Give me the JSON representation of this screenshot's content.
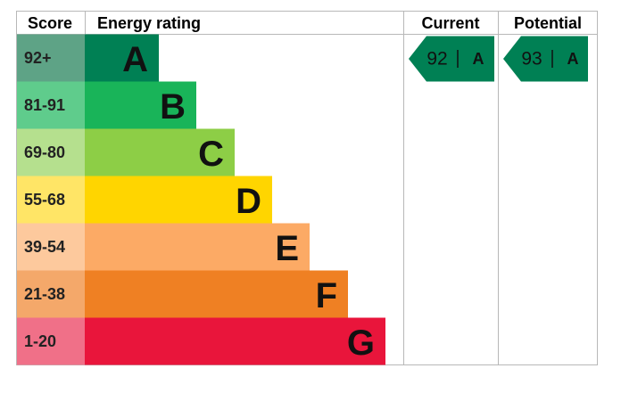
{
  "header": {
    "score": "Score",
    "energy_rating": "Energy rating",
    "current": "Current",
    "potential": "Potential"
  },
  "bands": [
    {
      "score": "92+",
      "letter": "A",
      "color": "#008054",
      "score_color": "#5ea386"
    },
    {
      "score": "81-91",
      "letter": "B",
      "color": "#19b459",
      "score_color": "#5fcc8c"
    },
    {
      "score": "69-80",
      "letter": "C",
      "color": "#8dce46",
      "score_color": "#b5e08e"
    },
    {
      "score": "55-68",
      "letter": "D",
      "color": "#ffd500",
      "score_color": "#ffe566"
    },
    {
      "score": "39-54",
      "letter": "E",
      "color": "#fcaa65",
      "score_color": "#fdc99d"
    },
    {
      "score": "21-38",
      "letter": "F",
      "color": "#ef8023",
      "score_color": "#f4a86a"
    },
    {
      "score": "1-20",
      "letter": "G",
      "color": "#e9153b",
      "score_color": "#f07088"
    }
  ],
  "current": {
    "value": 92,
    "letter": "A"
  },
  "potential": {
    "value": 93,
    "letter": "A"
  }
}
